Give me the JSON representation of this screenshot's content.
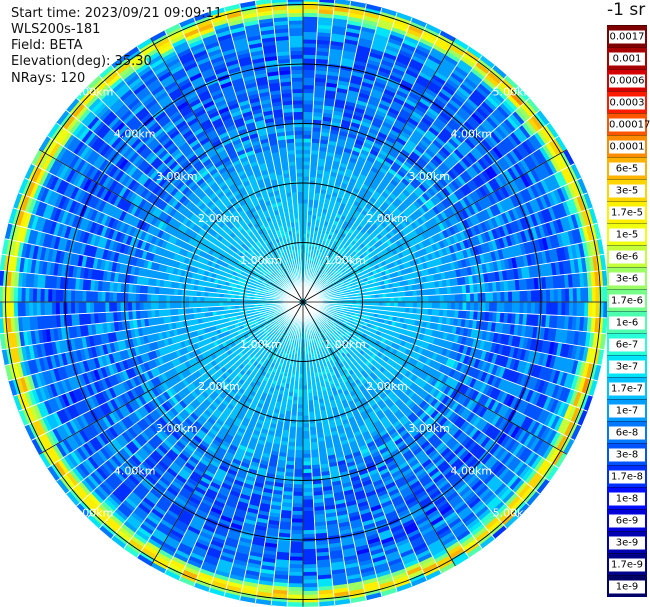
{
  "info": {
    "start_time": "Start time: 2023/09/21 09:09:11",
    "instrument": "WLS200s-181",
    "field": "Field: BETA",
    "elevation": "Elevation(deg): 35.30",
    "nrays": "NRays: 120"
  },
  "colorbar": {
    "unit_label": "-1 sr",
    "labels": [
      "0.0017",
      "0.001",
      "0.0006",
      "0.0003",
      "0.00017",
      "0.0001",
      "6e-5",
      "3e-5",
      "1.7e-5",
      "1e-5",
      "6e-6",
      "3e-6",
      "1.7e-6",
      "1e-6",
      "6e-7",
      "3e-7",
      "1.7e-7",
      "1e-7",
      "6e-8",
      "3e-8",
      "1.7e-8",
      "1e-8",
      "6e-9",
      "3e-9",
      "1.7e-9",
      "1e-9"
    ],
    "colors": [
      "#7f0000",
      "#a80000",
      "#d40000",
      "#ff1a00",
      "#ff5500",
      "#ff8c00",
      "#ffb300",
      "#ffd400",
      "#fff000",
      "#f0ff10",
      "#c4ff3a",
      "#9cff62",
      "#76ff88",
      "#4effb0",
      "#28ffd8",
      "#00e4f8",
      "#00c0ff",
      "#009cff",
      "#0078ff",
      "#0054ff",
      "#0030ff",
      "#000cff",
      "#0000d8",
      "#0000b0",
      "#000088",
      "#000066"
    ]
  },
  "chart_data": {
    "type": "polar_ppi",
    "field": "BETA",
    "nrays": 120,
    "elevation_deg": 35.3,
    "range_rings_km": [
      1,
      2,
      3,
      4,
      5
    ],
    "ring_labels": [
      "1.00km",
      "2.00km",
      "3.00km",
      "4.00km",
      "5.00km"
    ],
    "max_range_km": 5.12,
    "spokes_deg": [
      0,
      30,
      60,
      90,
      120,
      150,
      180,
      210,
      240,
      270,
      300,
      330
    ],
    "radial_profile": [
      {
        "range_km": 0.0,
        "beta": 2e-07
      },
      {
        "range_km": 1.0,
        "beta": 2e-07
      },
      {
        "range_km": 2.3,
        "beta": 1.3e-07
      },
      {
        "range_km": 3.2,
        "beta": 5e-08
      },
      {
        "range_km": 4.3,
        "beta": 4e-08
      },
      {
        "range_km": 4.75,
        "beta": 1e-07
      },
      {
        "range_km": 4.88,
        "beta": 8e-06
      },
      {
        "range_km": 4.97,
        "beta": 4e-05
      },
      {
        "range_km": 5.05,
        "beta": 8e-07
      },
      {
        "range_km": 5.12,
        "beta": 5e-08
      }
    ]
  }
}
